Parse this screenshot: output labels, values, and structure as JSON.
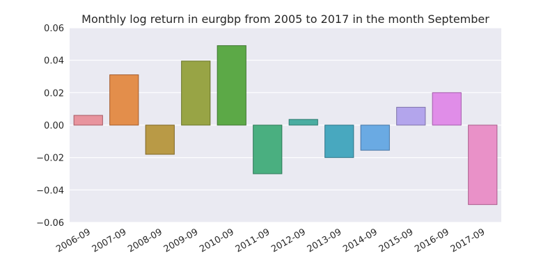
{
  "chart_data": {
    "type": "bar",
    "title": "Monthly log return in eurgbp from 2005 to 2017 in the month September",
    "xlabel": "",
    "ylabel": "",
    "categories": [
      "2006-09",
      "2007-09",
      "2008-09",
      "2009-09",
      "2010-09",
      "2011-09",
      "2012-09",
      "2013-09",
      "2014-09",
      "2015-09",
      "2016-09",
      "2017-09"
    ],
    "values": [
      0.006,
      0.031,
      -0.018,
      0.0395,
      0.049,
      -0.03,
      0.0035,
      -0.02,
      -0.0155,
      0.011,
      0.02,
      -0.049
    ],
    "ylim": [
      -0.06,
      0.06
    ],
    "yticks": [
      -0.06,
      -0.04,
      -0.02,
      0.0,
      0.02,
      0.04,
      0.06
    ],
    "ytick_labels": [
      "−0.06",
      "−0.04",
      "−0.02",
      "0.00",
      "0.02",
      "0.04",
      "0.06"
    ],
    "grid": true,
    "background_color": "#eaeaf2",
    "colors": [
      "#e8949e",
      "#e38e4b",
      "#b99a46",
      "#98a445",
      "#5ca947",
      "#4aaf80",
      "#4aada1",
      "#48a8bf",
      "#6aaae3",
      "#b3a5ec",
      "#e08de8",
      "#e991c8"
    ],
    "edge_colors": [
      "#a65963",
      "#a35a2a",
      "#7e6524",
      "#687428",
      "#3e7530",
      "#2f7858",
      "#2f7a70",
      "#2c7488",
      "#4674a3",
      "#7c70a8",
      "#a35aab",
      "#a95d8c"
    ]
  }
}
